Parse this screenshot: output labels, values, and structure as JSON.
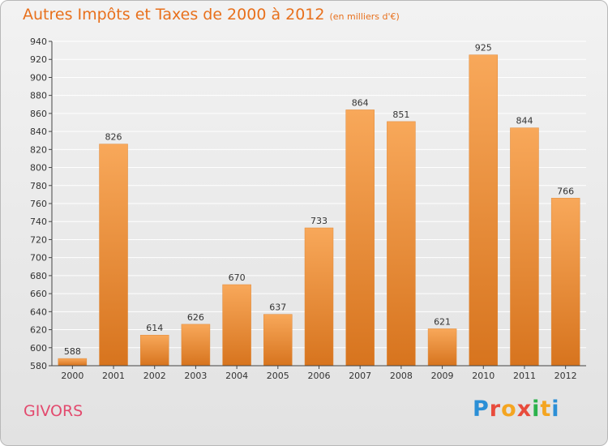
{
  "title": "Autres Impôts et Taxes de 2000 à 2012",
  "unit": "(en milliers d'€)",
  "place": "GIVORS",
  "logo_text": "Proxiti",
  "colors": {
    "title": "#e8701c",
    "place": "#e34a6e",
    "bar_light": "#f8a85a",
    "bar_dark": "#d7741e",
    "grid": "#ffffff",
    "logo": [
      "#2b8fd6",
      "#e84b3c",
      "#f4a521",
      "#e84b3c",
      "#2bb24c",
      "#f4a521",
      "#2b8fd6"
    ]
  },
  "chart_data": {
    "type": "bar",
    "title": "Autres Impôts et Taxes de 2000 à 2012",
    "subtitle": "(en milliers d'€)",
    "categories": [
      "2000",
      "2001",
      "2002",
      "2003",
      "2004",
      "2005",
      "2006",
      "2007",
      "2008",
      "2009",
      "2010",
      "2011",
      "2012"
    ],
    "values": [
      588,
      826,
      614,
      626,
      670,
      637,
      733,
      864,
      851,
      621,
      925,
      844,
      766
    ],
    "ylim": [
      580,
      940
    ],
    "yticks": [
      580,
      600,
      620,
      640,
      660,
      680,
      700,
      720,
      740,
      760,
      780,
      800,
      820,
      840,
      860,
      880,
      900,
      920,
      940
    ],
    "grid": true,
    "xlabel": "",
    "ylabel": ""
  }
}
